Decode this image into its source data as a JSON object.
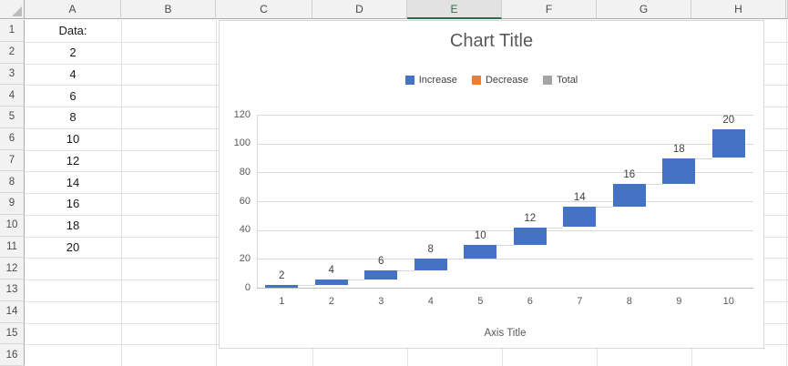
{
  "sheet": {
    "columns": [
      "A",
      "B",
      "C",
      "D",
      "E",
      "F",
      "G",
      "H"
    ],
    "selected_column": "E",
    "rows": [
      "1",
      "2",
      "3",
      "4",
      "5",
      "6",
      "7",
      "8",
      "9",
      "10",
      "11",
      "12",
      "13",
      "14",
      "15",
      "16"
    ],
    "cells_a": [
      "Data:",
      "2",
      "4",
      "6",
      "8",
      "10",
      "12",
      "14",
      "16",
      "18",
      "20"
    ]
  },
  "colors": {
    "bar_blue": "#4472C4",
    "decrease_orange": "#ED7D31",
    "total_gray": "#A5A5A5",
    "excel_green": "#217346"
  },
  "chart_data": {
    "type": "bar",
    "subtype": "waterfall",
    "title": "Chart Title",
    "categories": [
      "1",
      "2",
      "3",
      "4",
      "5",
      "6",
      "7",
      "8",
      "9",
      "10"
    ],
    "values": [
      2,
      4,
      6,
      8,
      10,
      12,
      14,
      16,
      18,
      20
    ],
    "cumulative_start": [
      0,
      2,
      6,
      12,
      20,
      30,
      42,
      56,
      72,
      90
    ],
    "cumulative_end": [
      2,
      6,
      12,
      20,
      30,
      42,
      56,
      72,
      90,
      110
    ],
    "data_labels": [
      "2",
      "4",
      "6",
      "8",
      "10",
      "12",
      "14",
      "16",
      "18",
      "20"
    ],
    "xlabel": "Axis Title",
    "ylabel": "",
    "ylim": [
      0,
      120
    ],
    "yticks": [
      0,
      20,
      40,
      60,
      80,
      100,
      120
    ],
    "grid": true,
    "legend": {
      "position": "top",
      "entries": [
        {
          "label": "Increase",
          "color": "#4472C4"
        },
        {
          "label": "Decrease",
          "color": "#ED7D31"
        },
        {
          "label": "Total",
          "color": "#A5A5A5"
        }
      ]
    }
  }
}
